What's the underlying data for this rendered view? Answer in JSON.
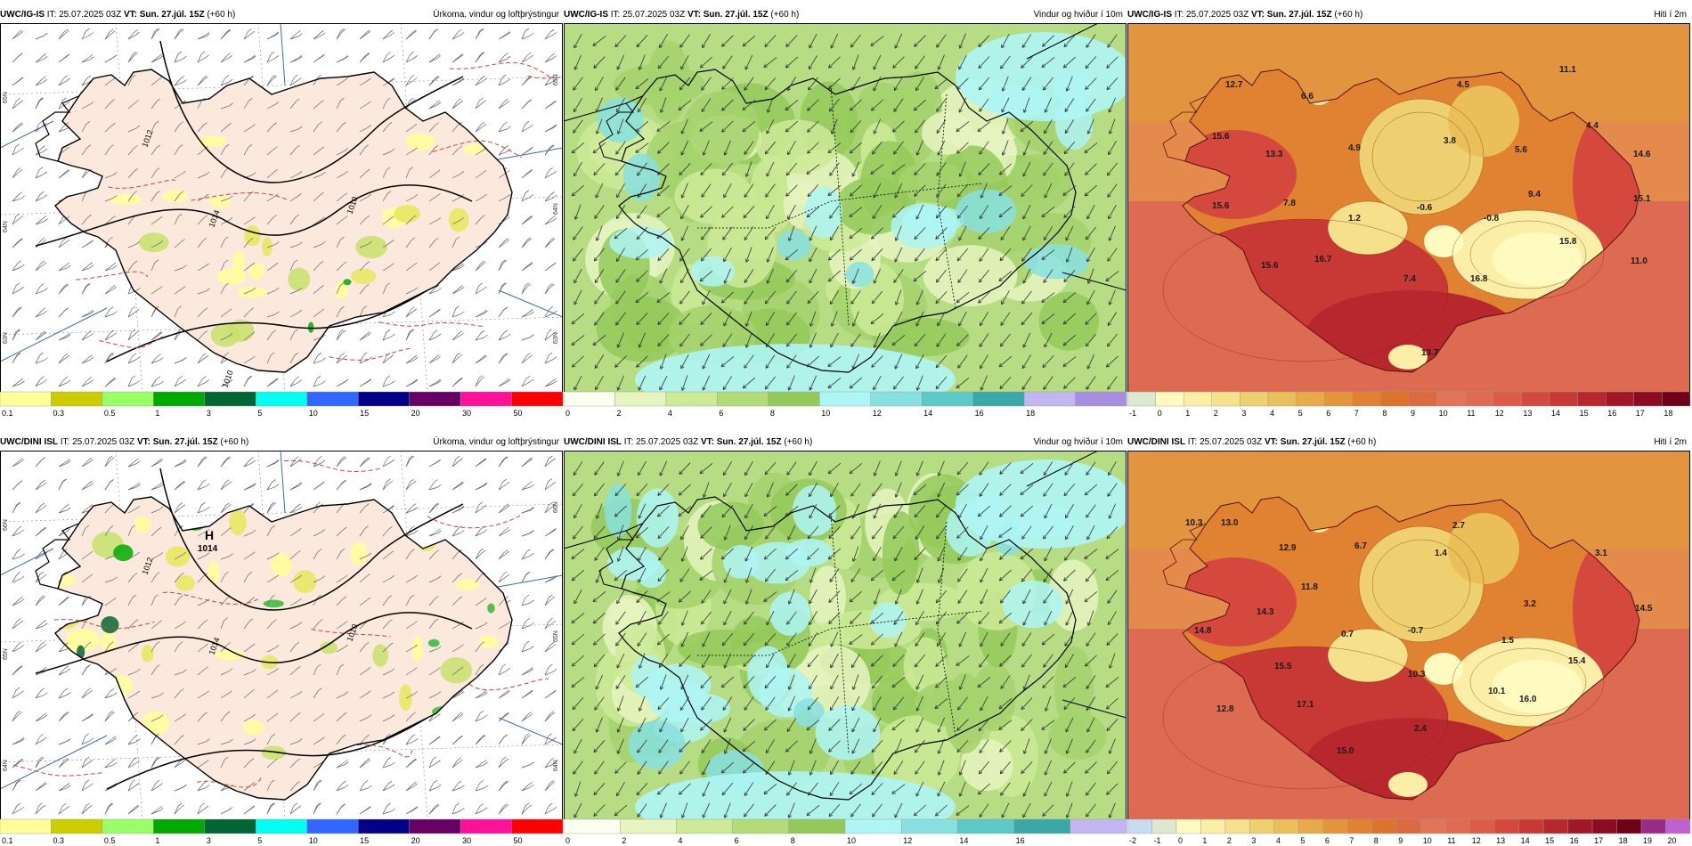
{
  "panels": [
    {
      "model": "UWC/IG-IS",
      "it_label": "IT:",
      "it": "25.07.2025 03Z",
      "vt_label": "VT:",
      "vt": "Sun. 27.júl. 15Z",
      "lead": "(+60 h)",
      "title": "Úrkoma, vindur og loftþrýstingur",
      "variant": "precip",
      "cbar_labels": [
        "0.1",
        "0.3",
        "0.5",
        "1",
        "3",
        "5",
        "10",
        "15",
        "20",
        "30",
        "50"
      ],
      "cbar_colors": [
        "#ffff99",
        "#cccc00",
        "#99ff66",
        "#00aa00",
        "#006633",
        "#00ffee",
        "#3366ff",
        "#000088",
        "#660066",
        "#ff1199",
        "#ff0000"
      ],
      "pressure_labels": [
        "1012",
        "1014",
        "1010",
        "1010"
      ],
      "pressure_highs": [],
      "grid_labels": [
        "65N",
        "64N",
        "63N"
      ],
      "values": []
    },
    {
      "model": "UWC/IG-IS",
      "it_label": "IT:",
      "it": "25.07.2025 03Z",
      "vt_label": "VT:",
      "vt": "Sun. 27.júl. 15Z",
      "lead": "(+60 h)",
      "title": "Vindur og hviður í 10m",
      "variant": "wind",
      "cbar_labels": [
        "0",
        "2",
        "4",
        "6",
        "8",
        "10",
        "12",
        "14",
        "16",
        "18"
      ],
      "cbar_colors": [
        "#fafff0",
        "#e6f5c0",
        "#cdea97",
        "#b3dc78",
        "#94c95a",
        "#aef5f5",
        "#88e0e0",
        "#5cc8c8",
        "#3aa8a8",
        "#c4b6f0",
        "#a88ee0"
      ],
      "pressure_labels": [],
      "pressure_highs": [],
      "grid_labels": [],
      "values": []
    },
    {
      "model": "UWC/IG-IS",
      "it_label": "IT:",
      "it": "25.07.2025 03Z",
      "vt_label": "VT:",
      "vt": "Sun. 27.júl. 15Z",
      "lead": "(+60 h)",
      "title": "Hiti í 2m",
      "variant": "temp",
      "cbar_labels": [
        "-1",
        "0",
        "1",
        "2",
        "3",
        "4",
        "5",
        "6",
        "7",
        "8",
        "9",
        "10",
        "11",
        "12",
        "13",
        "14",
        "15",
        "16",
        "17",
        "18"
      ],
      "cbar_colors": [
        "#dde8d0",
        "#fffbc0",
        "#fbefa8",
        "#f5e08c",
        "#efd070",
        "#eabf5a",
        "#e8aa48",
        "#e5963c",
        "#e08232",
        "#dd742c",
        "#db6a3e",
        "#e27558",
        "#e06a52",
        "#dc5c48",
        "#d4483e",
        "#c83834",
        "#b8262e",
        "#a21828",
        "#8c0a22",
        "#6e0018"
      ],
      "pressure_labels": [],
      "pressure_highs": [],
      "grid_labels": [],
      "values": [
        "12.7",
        "6.6",
        "11.1",
        "4.5",
        "4.4",
        "15.6",
        "13.3",
        "4.9",
        "3.8",
        "5.6",
        "14.6",
        "15.6",
        "7.8",
        "1.2",
        "-0.6",
        "-0.8",
        "9.4",
        "15.1",
        "15.6",
        "16.7",
        "7.4",
        "16.8",
        "15.8",
        "11.0",
        "13.7"
      ]
    },
    {
      "model": "UWC/DINI ISL",
      "it_label": "IT:",
      "it": "25.07.2025 03Z",
      "vt_label": "VT:",
      "vt": "Sun. 27.júl. 15Z",
      "lead": "(+60 h)",
      "title": "Úrkoma, vindur og loftþrýstingur",
      "variant": "precip2",
      "cbar_labels": [
        "0.1",
        "0.3",
        "0.5",
        "1",
        "3",
        "5",
        "10",
        "15",
        "20",
        "30",
        "50"
      ],
      "cbar_colors": [
        "#ffff99",
        "#cccc00",
        "#99ff66",
        "#00aa00",
        "#006633",
        "#00ffee",
        "#3366ff",
        "#000088",
        "#660066",
        "#ff1199",
        "#ff0000"
      ],
      "pressure_labels": [
        "1012",
        "1014",
        "1010"
      ],
      "pressure_highs": [
        {
          "letter": "H",
          "value": "1014"
        }
      ],
      "grid_labels": [
        "66N",
        "65N",
        "64N"
      ],
      "values": []
    },
    {
      "model": "UWC/DINI ISL",
      "it_label": "IT:",
      "it": "25.07.2025 03Z",
      "vt_label": "VT:",
      "vt": "Sun. 27.júl. 15Z",
      "lead": "(+60 h)",
      "title": "Vindur og hviður í 10m",
      "variant": "wind2",
      "cbar_labels": [
        "0",
        "2",
        "4",
        "6",
        "8",
        "10",
        "12",
        "14",
        "16"
      ],
      "cbar_colors": [
        "#fafff0",
        "#e6f5c0",
        "#cdea97",
        "#b3dc78",
        "#94c95a",
        "#aef5f5",
        "#88e0e0",
        "#5cc8c8",
        "#3aa8a8",
        "#c4b6f0"
      ],
      "pressure_labels": [],
      "pressure_highs": [],
      "grid_labels": [],
      "values": []
    },
    {
      "model": "UWC/DINI ISL",
      "it_label": "IT:",
      "it": "25.07.2025 03Z",
      "vt_label": "VT:",
      "vt": "Sun. 27.júl. 15Z",
      "lead": "(+60 h)",
      "title": "Hiti í 2m",
      "variant": "temp2",
      "cbar_labels": [
        "-2",
        "-1",
        "0",
        "1",
        "2",
        "3",
        "4",
        "5",
        "6",
        "7",
        "8",
        "9",
        "10",
        "11",
        "12",
        "13",
        "14",
        "15",
        "16",
        "17",
        "18",
        "19",
        "20"
      ],
      "cbar_colors": [
        "#c8dcf0",
        "#dde8d0",
        "#fffbc0",
        "#fbefa8",
        "#f5e08c",
        "#efd070",
        "#eabf5a",
        "#e8aa48",
        "#e5963c",
        "#e08232",
        "#dd742c",
        "#db6a3e",
        "#e27558",
        "#e06a52",
        "#dc5c48",
        "#d4483e",
        "#c83834",
        "#b8262e",
        "#a21828",
        "#8c0a22",
        "#6e0018",
        "#9a2a8a",
        "#c060d0"
      ],
      "pressure_labels": [],
      "pressure_highs": [],
      "grid_labels": [],
      "values": [
        "10.3",
        "13.0",
        "12.9",
        "6.7",
        "2.7",
        "1.4",
        "3.1",
        "11.8",
        "14.3",
        "14.8",
        "3.2",
        "14.5",
        "0.7",
        "-0.7",
        "1.5",
        "15.5",
        "10.3",
        "15.4",
        "10.1",
        "16.0",
        "12.8",
        "17.1",
        "2.4",
        "15.0"
      ]
    }
  ]
}
